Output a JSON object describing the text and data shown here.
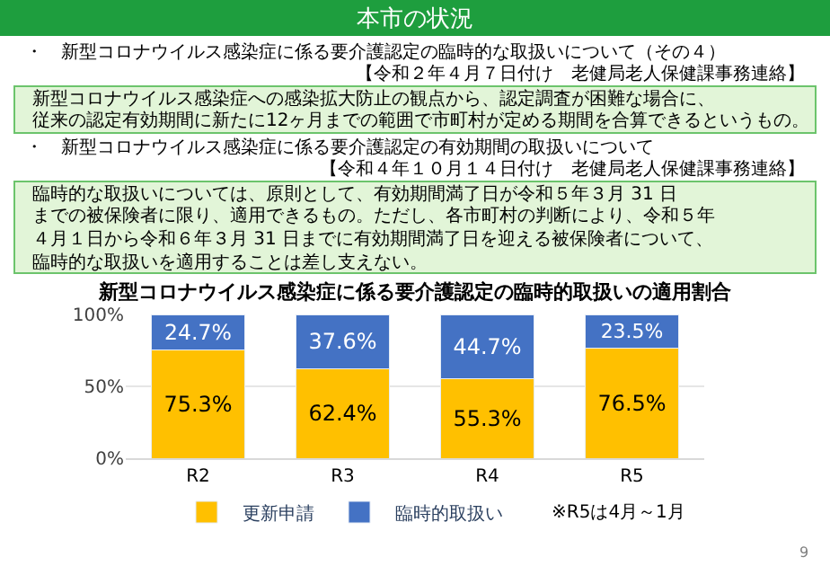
{
  "chart_data": {
    "type": "bar",
    "stacked": true,
    "title": "本市の状況",
    "subtitle": "新型コロナウイルス感染症に係る要介護認定の臨時的取扱いの適用割合",
    "categories": [
      "R2",
      "R3",
      "R4",
      "R5"
    ],
    "series": [
      {
        "name": "更新申請",
        "color": "#ffc000",
        "values": [
          75.3,
          62.4,
          55.3,
          76.5
        ],
        "value_labels": [
          "75.3%",
          "62.4%",
          "55.3%",
          "76.5%"
        ]
      },
      {
        "name": "臨時的取扱い",
        "color": "#4472c4",
        "values": [
          24.7,
          37.6,
          44.7,
          23.5
        ],
        "value_labels": [
          "24.7%",
          "37.6%",
          "44.7%",
          "23.5%"
        ]
      }
    ],
    "ylim": [
      0,
      100
    ],
    "yticks": [
      {
        "value": 0,
        "label": "0%"
      },
      {
        "value": 50,
        "label": "50%"
      },
      {
        "value": 100,
        "label": "100%"
      }
    ],
    "grid": "y",
    "legend": "bottom",
    "annotations": [
      "・　新型コロナウイルス感染症に係る要介護認定の臨時的な取扱いについて（その４）",
      "【令和２年４月７日付け　老健局老人保健課事務連絡】",
      "新型コロナウイルス感染症への感染拡大防止の観点から、認定調査が困難な場合に、",
      "従来の認定有効期間に新たに12ヶ月までの範囲で市町村が定める期間を合算できるというもの。",
      "・　新型コロナウイルス感染症に係る要介護認定の有効期間の取扱いについて",
      "【令和４年１０月１４日付け　老健局老人保健課事務連絡】",
      "臨時的な取扱いについては、原則として、有効期間満了日が令和５年３月 31 日",
      "までの被保険者に限り、適用できるもの。ただし、各市町村の判断により、令和５年",
      "４月１日から令和６年３月 31 日までに有効期間満了日を迎える被保険者について、",
      "臨時的な取扱いを適用することは差し支えない。",
      "※R5は4月～1月",
      "9"
    ]
  }
}
